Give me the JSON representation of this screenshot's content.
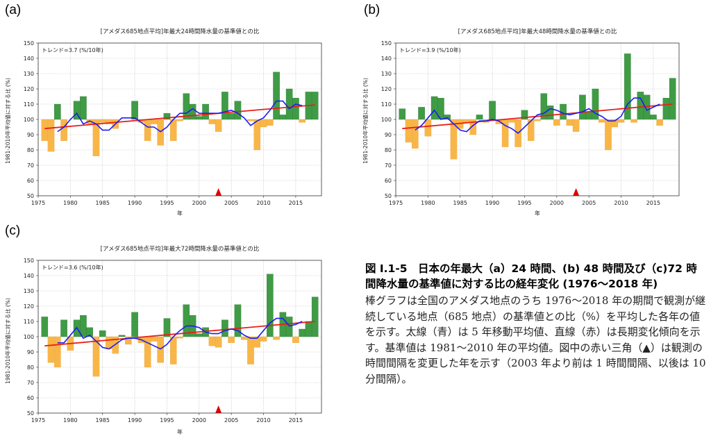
{
  "figure": {
    "caption_title": "図 I.1-5　日本の年最大（a）24 時間、(b) 48 時間及び（c)72 時間降水量の基準値に対する比の経年変化 (1976〜2018 年)",
    "caption_body": "棒グラフは全国のアメダス地点のうち 1976〜2018 年の期間で観測が継続している地点（685 地点）の基準値との比（%）を平均した各年の値を示す。太線（青）は 5 年移動平均値、直線（赤）は長期変化傾向を示す。基準値は 1981〜2010 年の平均値。図中の赤い三角（▲）は観測の時間間隔を変更した年を示す（2003 年より前は 1 時間間隔、以後は 10 分間隔）。"
  },
  "colors": {
    "above_bar": "#3f9c45",
    "below_bar": "#f9b648",
    "moving_average": "#1d1df0",
    "trend": "#e8201a",
    "marker": "#e00000"
  },
  "chart_data": [
    {
      "panel_label": "(a)",
      "type": "bar",
      "title": "[アメダス685地点平均]年最大24時間降水量の基準値との比",
      "trend_label": "トレンド=3.7 (%/10年)",
      "xlabel": "年",
      "ylabel": "1981-2010年平均値に対する比 (%)",
      "xlim": [
        1975,
        2019
      ],
      "ylim": [
        50,
        150
      ],
      "baseline": 100,
      "xticks": [
        1975,
        1980,
        1985,
        1990,
        1995,
        2000,
        2005,
        2010,
        2015
      ],
      "yticks": [
        50,
        60,
        70,
        80,
        90,
        100,
        110,
        120,
        130,
        140,
        150
      ],
      "grid": true,
      "years": [
        1976,
        1977,
        1978,
        1979,
        1980,
        1981,
        1982,
        1983,
        1984,
        1985,
        1986,
        1987,
        1988,
        1989,
        1990,
        1991,
        1992,
        1993,
        1994,
        1995,
        1996,
        1997,
        1998,
        1999,
        2000,
        2001,
        2002,
        2003,
        2004,
        2005,
        2006,
        2007,
        2008,
        2009,
        2010,
        2011,
        2012,
        2013,
        2014,
        2015,
        2016,
        2017,
        2018
      ],
      "values": [
        86,
        79,
        110,
        86,
        100,
        112,
        115,
        97,
        76,
        98,
        97,
        94,
        100,
        100,
        112,
        98,
        86,
        97,
        83,
        104,
        86,
        99,
        117,
        110,
        102,
        110,
        97,
        92,
        118,
        104,
        112,
        100,
        99,
        80,
        95,
        96,
        131,
        103,
        120,
        114,
        98,
        118,
        118
      ],
      "moving_average": {
        "years": [
          1978,
          1979,
          1980,
          1981,
          1982,
          1983,
          1984,
          1985,
          1986,
          1987,
          1988,
          1989,
          1990,
          1991,
          1992,
          1993,
          1994,
          1995,
          1996,
          1997,
          1998,
          1999,
          2000,
          2001,
          2002,
          2003,
          2004,
          2005,
          2006,
          2007,
          2008,
          2009,
          2010,
          2011,
          2012,
          2013,
          2014,
          2015,
          2016
        ],
        "values": [
          92,
          95,
          100,
          104,
          97,
          99,
          97,
          93,
          93,
          97,
          101,
          101,
          101,
          98,
          95,
          95,
          92,
          95,
          100,
          104,
          104,
          107,
          104,
          104,
          104,
          104,
          105,
          106,
          104,
          101,
          96,
          99,
          101,
          106,
          112,
          112,
          107,
          110,
          109
        ]
      },
      "trend_line": {
        "x": [
          1976,
          2018
        ],
        "y": [
          94,
          109.5
        ]
      },
      "marker_year": 2003
    },
    {
      "panel_label": "(b)",
      "type": "bar",
      "title": "[アメダス685地点平均]年最大48時間降水量の基準値との比",
      "trend_label": "トレンド=3.9 (%/10年)",
      "xlabel": "年",
      "ylabel": "1981-2010年平均値に対する比 (%)",
      "xlim": [
        1975,
        2019
      ],
      "ylim": [
        50,
        150
      ],
      "baseline": 100,
      "xticks": [
        1975,
        1980,
        1985,
        1990,
        1995,
        2000,
        2005,
        2010,
        2015
      ],
      "yticks": [
        50,
        60,
        70,
        80,
        90,
        100,
        110,
        120,
        130,
        140,
        150
      ],
      "grid": true,
      "years": [
        1976,
        1977,
        1978,
        1979,
        1980,
        1981,
        1982,
        1983,
        1984,
        1985,
        1986,
        1987,
        1988,
        1989,
        1990,
        1991,
        1992,
        1993,
        1994,
        1995,
        1996,
        1997,
        1998,
        1999,
        2000,
        2001,
        2002,
        2003,
        2004,
        2005,
        2006,
        2007,
        2008,
        2009,
        2010,
        2011,
        2012,
        2013,
        2014,
        2015,
        2016,
        2017,
        2018
      ],
      "values": [
        107,
        85,
        81,
        108,
        89,
        115,
        114,
        103,
        74,
        94,
        98,
        90,
        103,
        98,
        112,
        97,
        82,
        98,
        82,
        106,
        86,
        99,
        117,
        109,
        96,
        110,
        96,
        92,
        116,
        105,
        120,
        98,
        80,
        95,
        98,
        143,
        98,
        118,
        116,
        103,
        96,
        114,
        127
      ],
      "moving_average": {
        "years": [
          1978,
          1979,
          1980,
          1981,
          1982,
          1983,
          1984,
          1985,
          1986,
          1987,
          1988,
          1989,
          1990,
          1991,
          1992,
          1993,
          1994,
          1995,
          1996,
          1997,
          1998,
          1999,
          2000,
          2001,
          2002,
          2003,
          2004,
          2005,
          2006,
          2007,
          2008,
          2009,
          2010,
          2011,
          2012,
          2013,
          2014,
          2015,
          2016
        ],
        "values": [
          93,
          96,
          101,
          106,
          100,
          101,
          97,
          93,
          92,
          96,
          99,
          99,
          100,
          99,
          96,
          94,
          91,
          95,
          99,
          103,
          104,
          107,
          106,
          104,
          103,
          104,
          105,
          107,
          104,
          102,
          99,
          99,
          102,
          110,
          114,
          114,
          106,
          108,
          110
        ]
      },
      "trend_line": {
        "x": [
          1976,
          2018
        ],
        "y": [
          94,
          110
        ]
      },
      "marker_year": 2003
    },
    {
      "panel_label": "(c)",
      "type": "bar",
      "title": "[アメダス685地点平均]年最大72時間降水量の基準値との比",
      "trend_label": "トレンド=3.6 (%/10年)",
      "xlabel": "年",
      "ylabel": "1981-2010年平均値に対する比 (%)",
      "xlim": [
        1975,
        2019
      ],
      "ylim": [
        50,
        150
      ],
      "baseline": 100,
      "xticks": [
        1975,
        1980,
        1985,
        1990,
        1995,
        2000,
        2005,
        2010,
        2015
      ],
      "yticks": [
        50,
        60,
        70,
        80,
        90,
        100,
        110,
        120,
        130,
        140,
        150
      ],
      "grid": true,
      "years": [
        1976,
        1977,
        1978,
        1979,
        1980,
        1981,
        1982,
        1983,
        1984,
        1985,
        1986,
        1987,
        1988,
        1989,
        1990,
        1991,
        1992,
        1993,
        1994,
        1995,
        1996,
        1997,
        1998,
        1999,
        2000,
        2001,
        2002,
        2003,
        2004,
        2005,
        2006,
        2007,
        2008,
        2009,
        2010,
        2011,
        2012,
        2013,
        2014,
        2015,
        2016,
        2017,
        2018
      ],
      "values": [
        113,
        83,
        80,
        111,
        91,
        111,
        114,
        106,
        74,
        104,
        92,
        89,
        101,
        95,
        116,
        96,
        80,
        97,
        83,
        112,
        82,
        99,
        121,
        114,
        102,
        106,
        94,
        93,
        111,
        96,
        121,
        98,
        82,
        93,
        97,
        141,
        98,
        116,
        113,
        96,
        105,
        110,
        126
      ],
      "moving_average": {
        "years": [
          1978,
          1979,
          1980,
          1981,
          1982,
          1983,
          1984,
          1985,
          1986,
          1987,
          1988,
          1989,
          1990,
          1991,
          1992,
          1993,
          1994,
          1995,
          1996,
          1997,
          1998,
          1999,
          2000,
          2001,
          2002,
          2003,
          2004,
          2005,
          2006,
          2007,
          2008,
          2009,
          2010,
          2011,
          2012,
          2013,
          2014,
          2015,
          2016
        ],
        "values": [
          96,
          96,
          101,
          106,
          99,
          101,
          97,
          93,
          92,
          95,
          98,
          99,
          99,
          98,
          96,
          94,
          92,
          95,
          100,
          104,
          107,
          107,
          106,
          103,
          102,
          102,
          104,
          105,
          104,
          101,
          99,
          99,
          104,
          109,
          112,
          112,
          107,
          108,
          110
        ]
      },
      "trend_line": {
        "x": [
          1976,
          2018
        ],
        "y": [
          94,
          110
        ]
      },
      "marker_year": 2003
    }
  ]
}
